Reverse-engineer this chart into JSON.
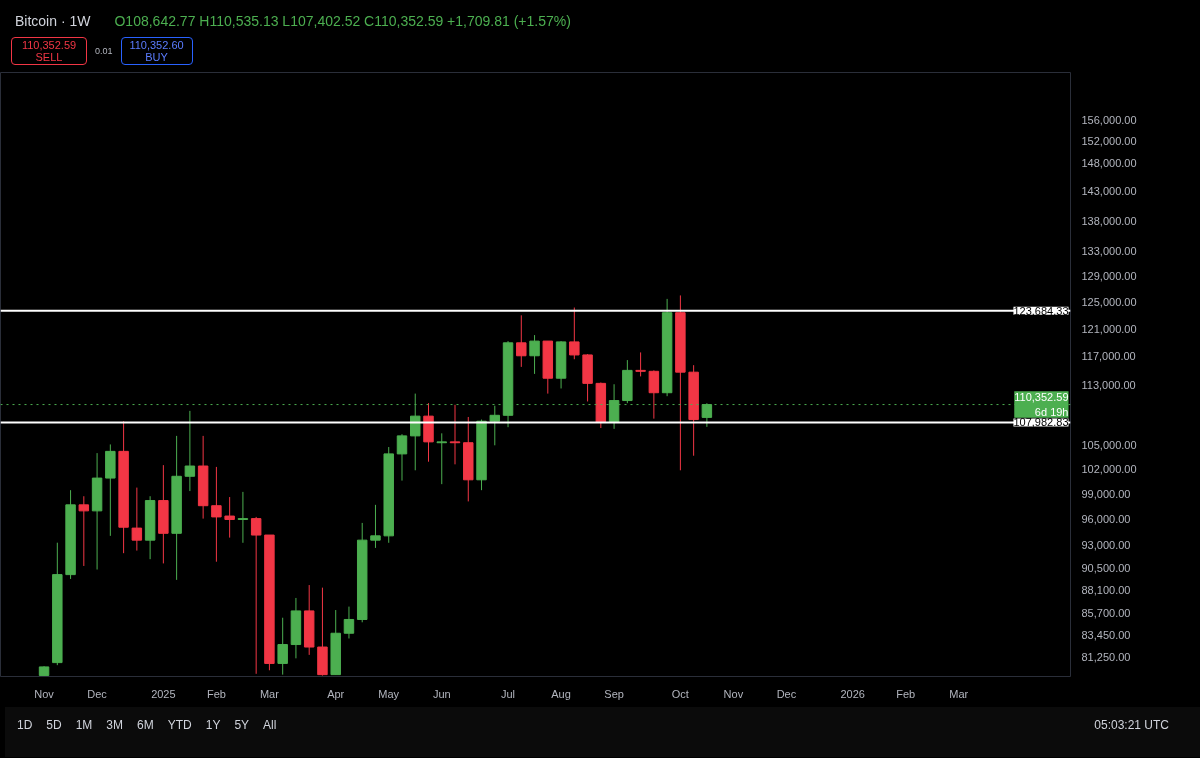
{
  "chart_data": {
    "type": "candlestick",
    "title": "Bitcoin · 1W",
    "subtitle": "O108,642.77 H110,535.13 L107,402.52 C110,352.59 +1,709.81 (+1.57%)",
    "x": [
      "2024-11-04",
      "2024-11-11",
      "2024-11-18",
      "2024-11-25",
      "2024-12-02",
      "2024-12-09",
      "2024-12-16",
      "2024-12-23",
      "2024-12-30",
      "2025-01-06",
      "2025-01-13",
      "2025-01-20",
      "2025-01-27",
      "2025-02-03",
      "2025-02-10",
      "2025-02-17",
      "2025-02-24",
      "2025-03-03",
      "2025-03-10",
      "2025-03-17",
      "2025-03-24",
      "2025-03-31",
      "2025-04-07",
      "2025-04-14",
      "2025-04-21",
      "2025-04-28",
      "2025-05-05",
      "2025-05-12",
      "2025-05-19",
      "2025-05-26",
      "2025-06-02",
      "2025-06-09",
      "2025-06-16",
      "2025-06-23",
      "2025-06-30",
      "2025-07-07",
      "2025-07-14",
      "2025-07-21",
      "2025-07-28",
      "2025-08-04",
      "2025-08-11",
      "2025-08-18",
      "2025-08-25",
      "2025-09-01",
      "2025-09-08",
      "2025-09-15",
      "2025-09-22",
      "2025-09-29",
      "2025-10-06",
      "2025-10-13",
      "2025-10-20"
    ],
    "ohlc": [
      [
        79400,
        80300,
        79400,
        80230
      ],
      [
        80650,
        93300,
        80400,
        89750
      ],
      [
        89750,
        99450,
        89280,
        97690
      ],
      [
        97690,
        98720,
        90700,
        96980
      ],
      [
        96980,
        104030,
        90310,
        100920
      ],
      [
        100920,
        105130,
        94080,
        104250
      ],
      [
        104250,
        108140,
        92120,
        95070
      ],
      [
        94970,
        99760,
        92410,
        93590
      ],
      [
        93590,
        98720,
        91450,
        98200
      ],
      [
        98200,
        102520,
        90980,
        94370
      ],
      [
        94370,
        106230,
        89180,
        101140
      ],
      [
        101140,
        109510,
        99340,
        102410
      ],
      [
        102410,
        106230,
        96070,
        97590
      ],
      [
        97590,
        102300,
        91170,
        96270
      ],
      [
        96370,
        98620,
        93880,
        95970
      ],
      [
        95970,
        99240,
        93290,
        96070
      ],
      [
        96070,
        96270,
        79560,
        94170
      ],
      [
        94170,
        94170,
        79900,
        80570
      ],
      [
        80570,
        85170,
        79480,
        82440
      ],
      [
        82440,
        87240,
        81070,
        85880
      ],
      [
        85880,
        88620,
        81410,
        82190
      ],
      [
        82190,
        88340,
        79390,
        79480
      ],
      [
        79480,
        85970,
        79450,
        83580
      ],
      [
        83580,
        86330,
        83050,
        84990
      ],
      [
        84990,
        95570,
        84700,
        93590
      ],
      [
        93590,
        97690,
        92710,
        94080
      ],
      [
        94080,
        104800,
        93290,
        103930
      ],
      [
        103930,
        106450,
        100610,
        106230
      ],
      [
        106230,
        111830,
        101880,
        108810
      ],
      [
        108810,
        110540,
        102950,
        105460
      ],
      [
        105350,
        106560,
        100180,
        105460
      ],
      [
        105460,
        110320,
        102620,
        105350
      ],
      [
        105350,
        108700,
        98100,
        100710
      ],
      [
        100710,
        108360,
        99450,
        108140
      ],
      [
        108140,
        110200,
        105020,
        108920
      ],
      [
        108920,
        119200,
        107360,
        118950
      ],
      [
        118950,
        122990,
        115520,
        117090
      ],
      [
        117090,
        120070,
        114540,
        119200
      ],
      [
        119200,
        119200,
        111830,
        113940
      ],
      [
        113940,
        119200,
        112530,
        119080
      ],
      [
        119080,
        124160,
        116600,
        117210
      ],
      [
        117210,
        117330,
        110770,
        113230
      ],
      [
        113230,
        113350,
        107250,
        108030
      ],
      [
        108030,
        113110,
        107140,
        110890
      ],
      [
        110890,
        116480,
        110540,
        115030
      ],
      [
        115030,
        117570,
        114190,
        114900
      ],
      [
        114900,
        115030,
        108480,
        111950
      ],
      [
        111950,
        125470,
        111480,
        123380
      ],
      [
        123380,
        126000,
        101880,
        114780
      ],
      [
        114780,
        115760,
        103700,
        108360
      ],
      [
        108642.77,
        110535.13,
        107402.52,
        110352.59
      ]
    ],
    "colors": [
      "#4caf50",
      "#4caf50",
      "#4caf50",
      "#f23645",
      "#4caf50",
      "#4caf50",
      "#f23645",
      "#f23645",
      "#4caf50",
      "#f23645",
      "#4caf50",
      "#4caf50",
      "#f23645",
      "#f23645",
      "#f23645",
      "#4caf50",
      "#f23645",
      "#f23645",
      "#4caf50",
      "#4caf50",
      "#f23645",
      "#f23645",
      "#4caf50",
      "#4caf50",
      "#4caf50",
      "#4caf50",
      "#4caf50",
      "#4caf50",
      "#4caf50",
      "#f23645",
      "#4caf50",
      "#f23645",
      "#f23645",
      "#4caf50",
      "#4caf50",
      "#4caf50",
      "#f23645",
      "#4caf50",
      "#f23645",
      "#4caf50",
      "#f23645",
      "#f23645",
      "#f23645",
      "#4caf50",
      "#4caf50",
      "#f23645",
      "#f23645",
      "#4caf50",
      "#f23645",
      "#f23645",
      "#4caf50"
    ],
    "xlim": [
      "2024-10-12",
      "2026-04-30"
    ],
    "xticks": [
      {
        "value": "2024-11-04",
        "label": "Nov"
      },
      {
        "value": "2024-12-02",
        "label": "Dec"
      },
      {
        "value": "2025-01-06",
        "label": "2025"
      },
      {
        "value": "2025-02-03",
        "label": "Feb"
      },
      {
        "value": "2025-03-03",
        "label": "Mar"
      },
      {
        "value": "2025-04-07",
        "label": "Apr"
      },
      {
        "value": "2025-05-05",
        "label": "May"
      },
      {
        "value": "2025-06-02",
        "label": "Jun"
      },
      {
        "value": "2025-07-07",
        "label": "Jul"
      },
      {
        "value": "2025-08-04",
        "label": "Aug"
      },
      {
        "value": "2025-09-01",
        "label": "Sep"
      },
      {
        "value": "2025-10-06",
        "label": "Oct"
      },
      {
        "value": "2025-11-03",
        "label": "Nov"
      },
      {
        "value": "2025-12-01",
        "label": "Dec"
      },
      {
        "value": "2026-01-05",
        "label": "2026"
      },
      {
        "value": "2026-02-02",
        "label": "Feb"
      },
      {
        "value": "2026-03-02",
        "label": "Mar"
      }
    ],
    "ylim": [
      79300,
      165200
    ],
    "log": true,
    "yticks": [
      {
        "value": 156000,
        "label": "156,000.00"
      },
      {
        "value": 152000,
        "label": "152,000.00"
      },
      {
        "value": 148000,
        "label": "148,000.00"
      },
      {
        "value": 143000,
        "label": "143,000.00"
      },
      {
        "value": 138000,
        "label": "138,000.00"
      },
      {
        "value": 133000,
        "label": "133,000.00"
      },
      {
        "value": 129000,
        "label": "129,000.00"
      },
      {
        "value": 125000,
        "label": "125,000.00"
      },
      {
        "value": 121000,
        "label": "121,000.00"
      },
      {
        "value": 117000,
        "label": "117,000.00"
      },
      {
        "value": 113000,
        "label": "113,000.00"
      },
      {
        "value": 105000,
        "label": "105,000.00"
      },
      {
        "value": 102000,
        "label": "102,000.00"
      },
      {
        "value": 99000,
        "label": "99,000.00"
      },
      {
        "value": 96000,
        "label": "96,000.00"
      },
      {
        "value": 93000,
        "label": "93,000.00"
      },
      {
        "value": 90500,
        "label": "90,500.00"
      },
      {
        "value": 88100,
        "label": "88,100.00"
      },
      {
        "value": 85700,
        "label": "85,700.00"
      },
      {
        "value": 83450,
        "label": "83,450.00"
      },
      {
        "value": 81250,
        "label": "81,250.00"
      }
    ],
    "ref_lines": [
      {
        "axis": "y",
        "value": 123684.33,
        "label": "123,684.33",
        "color": "#ffffff",
        "line_style": "solid"
      },
      {
        "axis": "y",
        "value": 107982.83,
        "label": "107,982.83",
        "color": "#ffffff",
        "line_style": "solid"
      },
      {
        "axis": "y",
        "value": 110352.59,
        "label": "110,352.59",
        "color": "#4caf50",
        "line_style": "dotted"
      }
    ],
    "annotations": [
      "110,352.59",
      "SELL",
      "0.01",
      "110,352.60",
      "BUY",
      "6d 19h",
      "1D",
      "5D",
      "1M",
      "3M",
      "6M",
      "YTD",
      "1Y",
      "5Y",
      "All",
      "05:03:21 UTC"
    ]
  }
}
